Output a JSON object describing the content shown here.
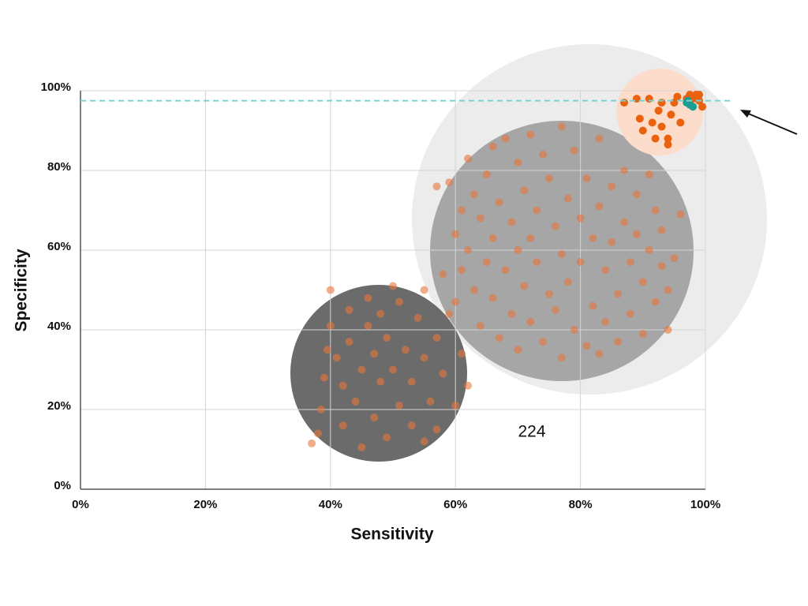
{
  "chart_data": {
    "type": "scatter",
    "x_label": "Sensitivity",
    "y_label": "Specificity",
    "xlim": [
      0,
      100
    ],
    "ylim": [
      0,
      100
    ],
    "xticks": [
      {
        "value": 0,
        "label": "0%"
      },
      {
        "value": 20,
        "label": "20%"
      },
      {
        "value": 40,
        "label": "40%"
      },
      {
        "value": 60,
        "label": "60%"
      },
      {
        "value": 80,
        "label": "80%"
      },
      {
        "value": 100,
        "label": "100%"
      }
    ],
    "yticks": [
      {
        "value": 0,
        "label": "0%"
      },
      {
        "value": 20,
        "label": "20%"
      },
      {
        "value": 40,
        "label": "40%"
      },
      {
        "value": 60,
        "label": "60%"
      },
      {
        "value": 80,
        "label": "80%"
      },
      {
        "value": 100,
        "label": "100%"
      }
    ],
    "grid": true,
    "reference_line": {
      "value": 97.5,
      "color": "#7fcfcf"
    },
    "annotation": "224",
    "series": [
      {
        "color": "#e8763a",
        "x": [
          37,
          38,
          38.5,
          39,
          39.5,
          40,
          40,
          41,
          42,
          42,
          43,
          43,
          44,
          45,
          45,
          46,
          46,
          47,
          47,
          48,
          48,
          49,
          49,
          50,
          50,
          51,
          51,
          52,
          53,
          53,
          54,
          55,
          55,
          55,
          56,
          57,
          57,
          58,
          59,
          60,
          61,
          62
        ],
        "values": [
          11.5,
          14,
          20,
          28,
          35,
          50,
          41,
          33,
          26,
          16,
          45,
          37,
          22,
          30,
          10.5,
          48,
          41,
          18,
          34,
          27,
          44,
          13,
          38,
          30,
          51,
          21,
          47,
          35,
          16,
          27,
          43,
          12,
          50,
          33,
          22,
          38,
          15,
          29,
          44,
          21,
          34,
          26
        ]
      },
      {
        "color": "#e8763a",
        "x": [
          57,
          58,
          59,
          60,
          60,
          61,
          61,
          62,
          62,
          63,
          63,
          64,
          64,
          65,
          65,
          66,
          66,
          66,
          67,
          67,
          68,
          68,
          69,
          69,
          70,
          70,
          70,
          71,
          71,
          72,
          72,
          72,
          73,
          73,
          74,
          74,
          75,
          75,
          76,
          76,
          77,
          77,
          77,
          78,
          78,
          79,
          79,
          80,
          80,
          81,
          81,
          82,
          82,
          83,
          83,
          83,
          84,
          84,
          85,
          85,
          86,
          86,
          87,
          87,
          88,
          88,
          89,
          89,
          90,
          90,
          91,
          91,
          92,
          92,
          93,
          93,
          94,
          94,
          95,
          96
        ],
        "values": [
          76,
          54,
          77,
          64,
          47,
          70,
          55,
          83,
          60,
          74,
          50,
          68,
          41,
          79,
          57,
          86,
          63,
          48,
          72,
          38,
          88,
          55,
          67,
          44,
          82,
          60,
          35,
          75,
          51,
          89,
          63,
          42,
          70,
          57,
          84,
          37,
          78,
          49,
          66,
          45,
          91,
          59,
          33,
          73,
          52,
          85,
          40,
          68,
          57,
          78,
          36,
          63,
          46,
          88,
          71,
          34,
          55,
          42,
          76,
          62,
          49,
          37,
          80,
          67,
          57,
          44,
          74,
          64,
          52,
          39,
          79,
          60,
          70,
          47,
          56,
          65,
          40,
          50,
          58,
          69
        ]
      },
      {
        "color": "#e8620f",
        "x": [
          87,
          89,
          89.5,
          90,
          91,
          91.5,
          92,
          92.5,
          93,
          93,
          94,
          94,
          94.5,
          95,
          95.5,
          96,
          97,
          97.5,
          98,
          98.5,
          99,
          99,
          99.5
        ],
        "values": [
          97,
          98,
          93,
          90,
          98,
          92,
          88,
          95,
          97,
          91,
          86.5,
          88,
          94,
          97,
          98.5,
          92,
          98,
          99,
          98,
          99,
          97.5,
          99,
          96
        ]
      },
      {
        "color": "#1a9e94",
        "x": [
          97,
          97.5,
          98,
          97.2
        ],
        "values": [
          97,
          96.5,
          96,
          97.5
        ]
      }
    ]
  }
}
